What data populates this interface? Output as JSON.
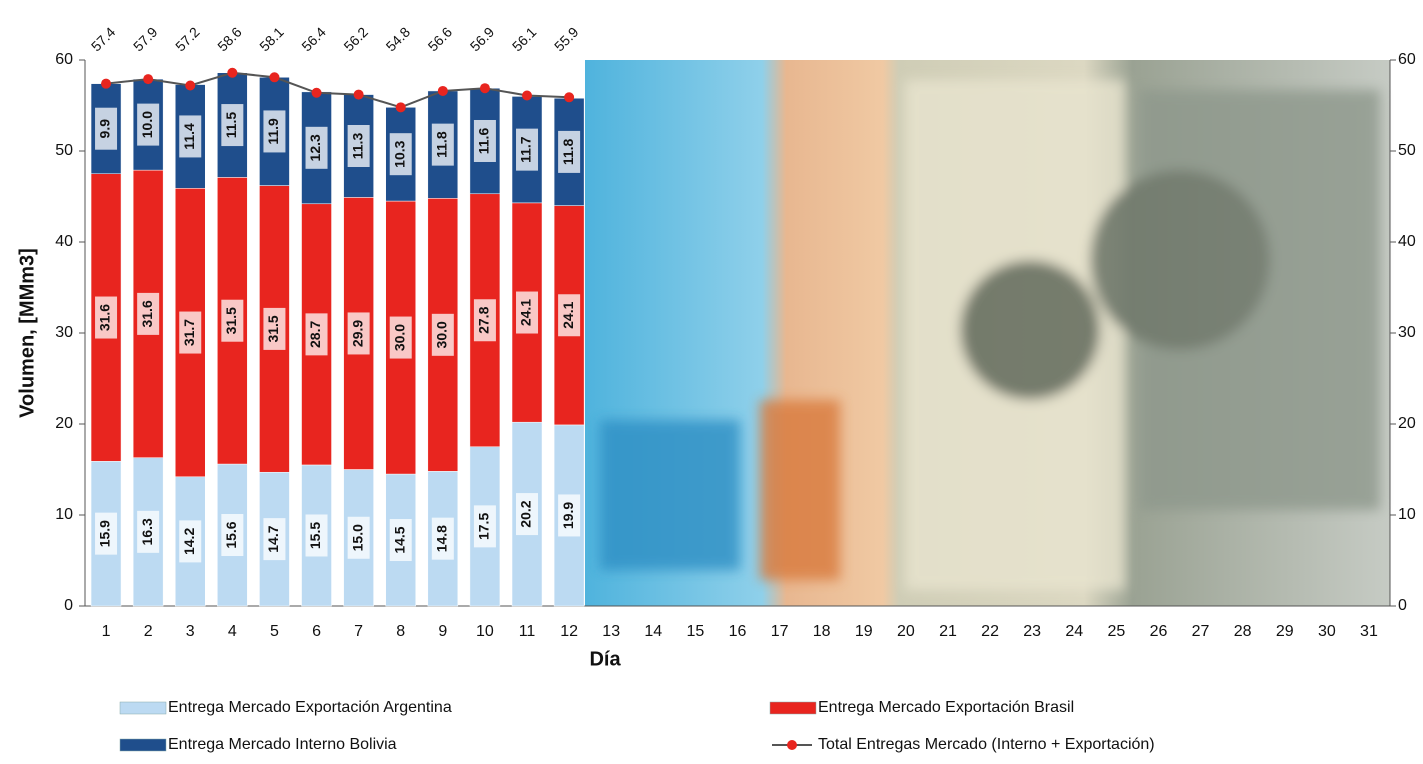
{
  "chart_data": {
    "type": "stacked-bar-line",
    "x_label": "Día",
    "y_label": "Volumen, [MMm3]",
    "categories": [
      "1",
      "2",
      "3",
      "4",
      "5",
      "6",
      "7",
      "8",
      "9",
      "10",
      "11",
      "12",
      "13",
      "14",
      "15",
      "16",
      "17",
      "18",
      "19",
      "20",
      "21",
      "22",
      "23",
      "24",
      "25",
      "26",
      "27",
      "28",
      "29",
      "30",
      "31"
    ],
    "series": [
      {
        "name": "Entrega Mercado Exportación Argentina",
        "color": "#bcdaf2",
        "values": [
          15.9,
          16.3,
          14.2,
          15.6,
          14.7,
          15.5,
          15.0,
          14.5,
          14.8,
          17.5,
          20.2,
          19.9,
          null,
          null,
          null,
          null,
          null,
          null,
          null,
          null,
          null,
          null,
          null,
          null,
          null,
          null,
          null,
          null,
          null,
          null,
          null
        ],
        "value_labels": [
          "15.9",
          "16.3",
          "14.2",
          "15.6",
          "14.7",
          "15.5",
          "15.0",
          "14.5",
          "14.8",
          "17.5",
          "20.2",
          "19.9",
          null,
          null,
          null,
          null,
          null,
          null,
          null,
          null,
          null,
          null,
          null,
          null,
          null,
          null,
          null,
          null,
          null,
          null,
          null
        ]
      },
      {
        "name": "Entrega Mercado Exportación Brasil",
        "color": "#e8251f",
        "values": [
          31.6,
          31.6,
          31.7,
          31.5,
          31.5,
          28.7,
          29.9,
          30.0,
          30.0,
          27.8,
          24.1,
          24.1,
          null,
          null,
          null,
          null,
          null,
          null,
          null,
          null,
          null,
          null,
          null,
          null,
          null,
          null,
          null,
          null,
          null,
          null,
          null
        ],
        "value_labels": [
          "31.6",
          "31.6",
          "31.7",
          "31.5",
          "31.5",
          "28.7",
          "29.9",
          "30.0",
          "30.0",
          "27.8",
          "24.1",
          "24.1",
          null,
          null,
          null,
          null,
          null,
          null,
          null,
          null,
          null,
          null,
          null,
          null,
          null,
          null,
          null,
          null,
          null,
          null,
          null
        ]
      },
      {
        "name": "Entrega Mercado Interno Bolivia",
        "color": "#1f4e8c",
        "values": [
          9.9,
          10.0,
          11.4,
          11.5,
          11.9,
          12.3,
          11.3,
          10.3,
          11.8,
          11.6,
          11.7,
          11.8,
          null,
          null,
          null,
          null,
          null,
          null,
          null,
          null,
          null,
          null,
          null,
          null,
          null,
          null,
          null,
          null,
          null,
          null,
          null
        ],
        "value_labels": [
          "9.9",
          "10.0",
          "11.4",
          "11.5",
          "11.9",
          "12.3",
          "11.3",
          "10.3",
          "11.8",
          "11.6",
          "11.7",
          "11.8",
          null,
          null,
          null,
          null,
          null,
          null,
          null,
          null,
          null,
          null,
          null,
          null,
          null,
          null,
          null,
          null,
          null,
          null,
          null
        ]
      },
      {
        "name": "Total Entregas Mercado (Interno + Exportación)",
        "type": "line",
        "color": "#555555",
        "marker_color": "#e8251f",
        "values": [
          57.4,
          57.9,
          57.2,
          58.6,
          58.1,
          56.4,
          56.2,
          54.8,
          56.6,
          56.9,
          56.1,
          55.9,
          null,
          null,
          null,
          null,
          null,
          null,
          null,
          null,
          null,
          null,
          null,
          null,
          null,
          null,
          null,
          null,
          null,
          null,
          null
        ]
      }
    ],
    "ylim": [
      0,
      60
    ],
    "yticks": [
      0,
      10,
      20,
      30,
      40,
      50,
      60
    ],
    "y2lim": [
      0,
      60
    ],
    "y2ticks": [
      0,
      10,
      20,
      30,
      40,
      50,
      60
    ]
  }
}
